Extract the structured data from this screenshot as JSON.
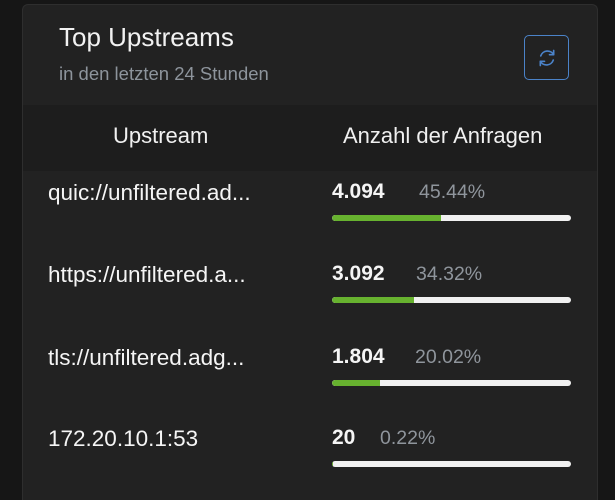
{
  "card": {
    "title": "Top Upstreams",
    "subtitle": "in den letzten 24 Stunden",
    "refresh_icon": "refresh-icon"
  },
  "table": {
    "columns": [
      "Upstream",
      "Anzahl der Anfragen"
    ],
    "rows": [
      {
        "upstream": "quic://unfiltered.ad...",
        "count": "4.094",
        "percent": "45.44%",
        "fraction": 0.4544
      },
      {
        "upstream": "https://unfiltered.a...",
        "count": "3.092",
        "percent": "34.32%",
        "fraction": 0.3432
      },
      {
        "upstream": "tls://unfiltered.adg...",
        "count": "1.804",
        "percent": "20.02%",
        "fraction": 0.2002
      },
      {
        "upstream": "172.20.10.1:53",
        "count": "20",
        "percent": "0.22%",
        "fraction": 0.0022
      }
    ]
  },
  "colors": {
    "bar_fill": "#67b22f",
    "bar_track": "#f1f1f1",
    "accent": "#4b83c9"
  }
}
